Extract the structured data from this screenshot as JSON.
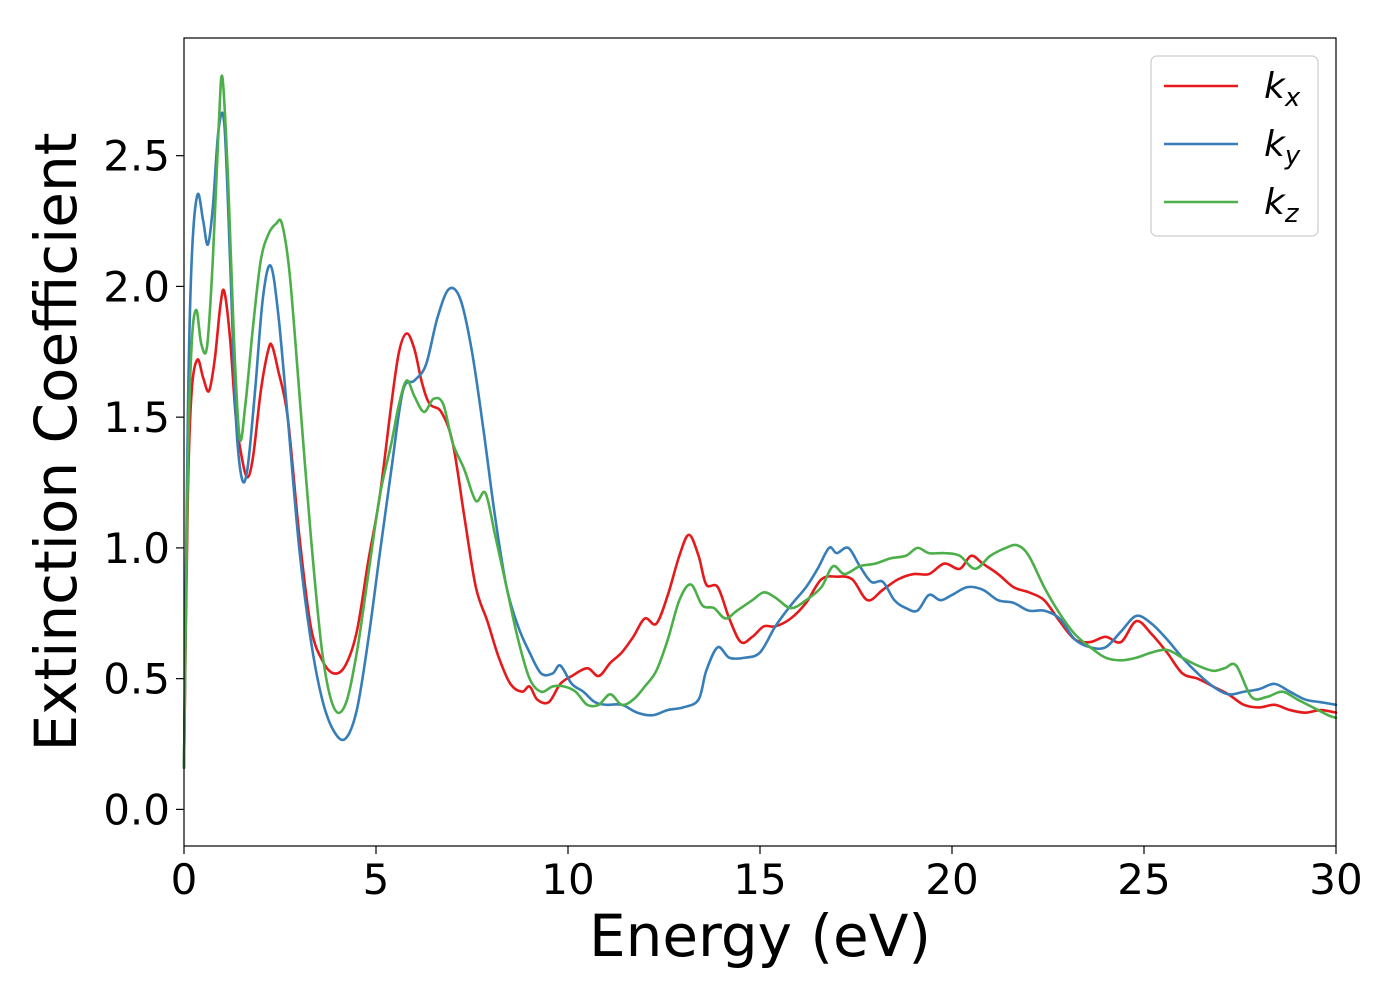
{
  "chart_data": {
    "type": "line",
    "title": "",
    "xlabel": "Energy (eV)",
    "ylabel": "Extinction Coefficient",
    "xlim": [
      0,
      30
    ],
    "ylim": [
      -0.14,
      2.95
    ],
    "xticks": [
      0,
      5,
      10,
      15,
      20,
      25,
      30
    ],
    "xtick_labels": [
      "0",
      "5",
      "10",
      "15",
      "20",
      "25",
      "30"
    ],
    "yticks": [
      0.0,
      0.5,
      1.0,
      1.5,
      2.0,
      2.5
    ],
    "ytick_labels": [
      "0.0",
      "0.5",
      "1.0",
      "1.5",
      "2.0",
      "2.5"
    ],
    "grid": false,
    "legend_position": "top-right",
    "series": [
      {
        "name": "k",
        "subscript": "x",
        "color": "#e41a1c",
        "x": [
          0,
          0.1,
          0.2,
          0.35,
          0.5,
          0.65,
          0.8,
          0.95,
          1.05,
          1.2,
          1.35,
          1.5,
          1.65,
          1.8,
          2.0,
          2.2,
          2.3,
          2.45,
          2.7,
          3.0,
          3.3,
          3.6,
          3.9,
          4.2,
          4.5,
          4.8,
          5.1,
          5.4,
          5.6,
          5.8,
          6.0,
          6.2,
          6.4,
          6.7,
          7.0,
          7.3,
          7.6,
          7.9,
          8.2,
          8.5,
          8.8,
          9.0,
          9.2,
          9.5,
          9.8,
          10.1,
          10.5,
          10.8,
          11.1,
          11.4,
          11.7,
          12.0,
          12.3,
          12.6,
          12.9,
          13.15,
          13.4,
          13.6,
          13.9,
          14.2,
          14.5,
          14.8,
          15.1,
          15.4,
          15.8,
          16.2,
          16.6,
          17.0,
          17.4,
          17.8,
          18.2,
          18.6,
          19.0,
          19.4,
          19.8,
          20.2,
          20.5,
          20.8,
          21.2,
          21.6,
          22.0,
          22.4,
          22.8,
          23.2,
          23.6,
          24.0,
          24.4,
          24.8,
          25.2,
          25.6,
          26.0,
          26.4,
          26.8,
          27.2,
          27.6,
          28.0,
          28.4,
          28.8,
          29.2,
          29.6,
          30.0
        ],
        "y": [
          0.16,
          1.2,
          1.6,
          1.72,
          1.65,
          1.6,
          1.72,
          1.93,
          1.98,
          1.8,
          1.5,
          1.35,
          1.27,
          1.35,
          1.6,
          1.76,
          1.77,
          1.68,
          1.5,
          1.05,
          0.7,
          0.57,
          0.52,
          0.55,
          0.68,
          0.95,
          1.2,
          1.55,
          1.75,
          1.82,
          1.76,
          1.63,
          1.55,
          1.52,
          1.4,
          1.12,
          0.85,
          0.72,
          0.58,
          0.48,
          0.45,
          0.47,
          0.42,
          0.41,
          0.48,
          0.51,
          0.54,
          0.51,
          0.56,
          0.6,
          0.66,
          0.73,
          0.71,
          0.82,
          0.97,
          1.05,
          0.97,
          0.86,
          0.85,
          0.73,
          0.64,
          0.66,
          0.7,
          0.7,
          0.73,
          0.79,
          0.88,
          0.89,
          0.88,
          0.8,
          0.84,
          0.88,
          0.9,
          0.9,
          0.94,
          0.92,
          0.97,
          0.94,
          0.9,
          0.85,
          0.83,
          0.8,
          0.72,
          0.65,
          0.64,
          0.66,
          0.64,
          0.72,
          0.67,
          0.6,
          0.52,
          0.5,
          0.47,
          0.44,
          0.4,
          0.39,
          0.4,
          0.38,
          0.37,
          0.38,
          0.37
        ]
      },
      {
        "name": "k",
        "subscript": "y",
        "color": "#377eb8",
        "x": [
          0,
          0.1,
          0.2,
          0.35,
          0.5,
          0.62,
          0.75,
          0.9,
          1.05,
          1.2,
          1.35,
          1.5,
          1.65,
          1.85,
          2.05,
          2.25,
          2.45,
          2.7,
          3.0,
          3.3,
          3.6,
          3.9,
          4.2,
          4.5,
          4.8,
          5.1,
          5.4,
          5.7,
          6.0,
          6.3,
          6.6,
          6.9,
          7.2,
          7.5,
          7.8,
          8.1,
          8.4,
          8.7,
          9.0,
          9.3,
          9.6,
          9.8,
          10.1,
          10.4,
          10.7,
          11.0,
          11.4,
          11.8,
          12.2,
          12.6,
          13.0,
          13.4,
          13.6,
          13.9,
          14.2,
          14.6,
          15.0,
          15.4,
          15.8,
          16.2,
          16.5,
          16.8,
          17.0,
          17.3,
          17.6,
          17.9,
          18.2,
          18.5,
          18.8,
          19.1,
          19.4,
          19.7,
          20.0,
          20.4,
          20.8,
          21.2,
          21.6,
          22.0,
          22.4,
          22.8,
          23.2,
          23.6,
          24.0,
          24.4,
          24.8,
          25.2,
          25.6,
          26.0,
          26.4,
          26.8,
          27.2,
          27.6,
          28.0,
          28.4,
          28.8,
          29.2,
          29.6,
          30.0
        ],
        "y": [
          0.16,
          1.5,
          2.1,
          2.35,
          2.25,
          2.16,
          2.3,
          2.6,
          2.62,
          2.1,
          1.5,
          1.27,
          1.3,
          1.6,
          1.95,
          2.08,
          1.9,
          1.5,
          1.0,
          0.65,
          0.42,
          0.3,
          0.27,
          0.38,
          0.65,
          0.98,
          1.3,
          1.6,
          1.64,
          1.7,
          1.88,
          1.99,
          1.95,
          1.75,
          1.45,
          1.12,
          0.85,
          0.7,
          0.6,
          0.52,
          0.52,
          0.55,
          0.48,
          0.45,
          0.41,
          0.4,
          0.4,
          0.37,
          0.36,
          0.38,
          0.39,
          0.42,
          0.53,
          0.62,
          0.58,
          0.58,
          0.6,
          0.7,
          0.78,
          0.85,
          0.92,
          1.0,
          0.98,
          1.0,
          0.93,
          0.87,
          0.87,
          0.8,
          0.77,
          0.76,
          0.82,
          0.8,
          0.82,
          0.85,
          0.84,
          0.8,
          0.79,
          0.76,
          0.76,
          0.73,
          0.65,
          0.62,
          0.62,
          0.68,
          0.74,
          0.71,
          0.65,
          0.58,
          0.52,
          0.47,
          0.44,
          0.45,
          0.46,
          0.48,
          0.45,
          0.42,
          0.41,
          0.4
        ]
      },
      {
        "name": "k",
        "subscript": "z",
        "color": "#4daf4a",
        "x": [
          0,
          0.1,
          0.2,
          0.32,
          0.45,
          0.6,
          0.75,
          0.9,
          1.0,
          1.15,
          1.3,
          1.45,
          1.6,
          1.8,
          2.0,
          2.2,
          2.4,
          2.55,
          2.75,
          3.0,
          3.3,
          3.6,
          3.9,
          4.2,
          4.5,
          4.8,
          5.1,
          5.4,
          5.6,
          5.8,
          6.0,
          6.25,
          6.5,
          6.75,
          7.0,
          7.3,
          7.6,
          7.85,
          8.1,
          8.4,
          8.7,
          9.0,
          9.3,
          9.6,
          9.9,
          10.2,
          10.5,
          10.8,
          11.1,
          11.4,
          11.7,
          12.0,
          12.3,
          12.6,
          12.9,
          13.2,
          13.5,
          13.8,
          14.1,
          14.4,
          14.8,
          15.1,
          15.4,
          15.8,
          16.2,
          16.6,
          16.9,
          17.2,
          17.6,
          18.0,
          18.4,
          18.8,
          19.1,
          19.4,
          19.8,
          20.2,
          20.6,
          21.0,
          21.4,
          21.7,
          22.0,
          22.4,
          22.8,
          23.2,
          23.6,
          24.0,
          24.4,
          24.8,
          25.2,
          25.6,
          26.0,
          26.4,
          26.8,
          27.1,
          27.4,
          27.8,
          28.2,
          28.6,
          29.0,
          29.4,
          29.8,
          30.0
        ],
        "y": [
          0.16,
          1.3,
          1.78,
          1.91,
          1.78,
          1.77,
          2.1,
          2.6,
          2.8,
          2.4,
          1.8,
          1.42,
          1.55,
          1.85,
          2.1,
          2.2,
          2.24,
          2.24,
          2.05,
          1.6,
          1.05,
          0.6,
          0.39,
          0.4,
          0.6,
          0.9,
          1.2,
          1.4,
          1.55,
          1.64,
          1.58,
          1.52,
          1.57,
          1.55,
          1.4,
          1.3,
          1.18,
          1.21,
          1.05,
          0.85,
          0.65,
          0.5,
          0.45,
          0.47,
          0.47,
          0.45,
          0.4,
          0.4,
          0.44,
          0.4,
          0.42,
          0.47,
          0.53,
          0.65,
          0.8,
          0.86,
          0.78,
          0.77,
          0.73,
          0.76,
          0.8,
          0.83,
          0.81,
          0.77,
          0.8,
          0.85,
          0.93,
          0.9,
          0.93,
          0.94,
          0.96,
          0.97,
          1.0,
          0.98,
          0.98,
          0.97,
          0.92,
          0.97,
          1.0,
          1.01,
          0.97,
          0.85,
          0.75,
          0.67,
          0.62,
          0.58,
          0.57,
          0.58,
          0.6,
          0.61,
          0.58,
          0.55,
          0.53,
          0.54,
          0.55,
          0.43,
          0.43,
          0.45,
          0.42,
          0.39,
          0.36,
          0.35
        ]
      }
    ]
  }
}
